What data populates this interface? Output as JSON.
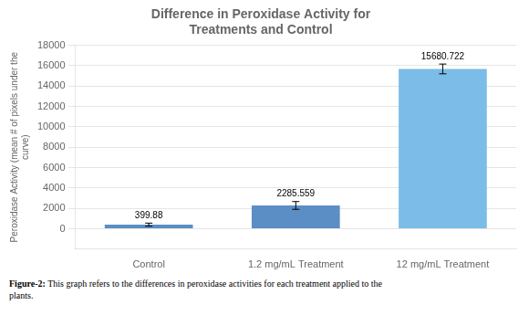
{
  "chart_data": {
    "type": "bar",
    "title": "Difference in Peroxidase Activity for\nTreatments and Control",
    "categories": [
      "Control",
      "1.2 mg/mL Treatment",
      "12 mg/mL Treatment"
    ],
    "values": [
      399.88,
      2285.559,
      15680.722
    ],
    "errors": [
      150,
      380,
      480
    ],
    "colors": [
      "#5b8ec4",
      "#5b8ec4",
      "#7bbde8"
    ],
    "ylabel": "Peroxidase Activity (mean # of pixels under the\ncurve)",
    "ylim": [
      -2000,
      18000
    ],
    "yticks": [
      0,
      2000,
      4000,
      6000,
      8000,
      10000,
      12000,
      14000,
      16000,
      18000
    ],
    "grid": true,
    "data_labels": true,
    "annotations": [
      "Figure-2:",
      "This graph refers to the differences in peroxidase activities for each treatment applied to the\nplants."
    ]
  }
}
